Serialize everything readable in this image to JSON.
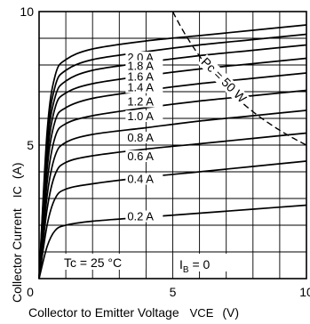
{
  "chart_data": {
    "type": "line",
    "title": "",
    "xlabel": "Collector to Emitter Voltage VCE (V)",
    "xlabel_main": "Collector to Emitter Voltage",
    "xlabel_symbol": "VCE",
    "xlabel_unit": "(V)",
    "ylabel": "Collector Current IC (A)",
    "ylabel_main": "Collector Current",
    "ylabel_symbol": "IC",
    "ylabel_unit": "(A)",
    "xlim": [
      0,
      10
    ],
    "ylim": [
      0,
      10
    ],
    "x_ticks": [
      0,
      5,
      10
    ],
    "y_ticks": [
      5,
      10
    ],
    "grid": true,
    "annotations": {
      "temperature": "Tc = 25 °C",
      "base_current": "IB = 0",
      "power_limit": "Pc = 50 W"
    },
    "power_limit_curve": {
      "name": "Pc = 50 W",
      "style": "dashed",
      "watts": 50
    },
    "series": [
      {
        "name": "2.0 A",
        "x": [
          0,
          0.3,
          0.6,
          1,
          2,
          4,
          6,
          8,
          10
        ],
        "y": [
          0,
          5.5,
          7.6,
          8.2,
          8.6,
          8.9,
          9.1,
          9.3,
          9.5
        ]
      },
      {
        "name": "1.8 A",
        "x": [
          0,
          0.3,
          0.6,
          1,
          2,
          4,
          6,
          8,
          10
        ],
        "y": [
          0,
          5.2,
          7.2,
          7.8,
          8.2,
          8.5,
          8.75,
          8.95,
          9.15
        ]
      },
      {
        "name": "1.6 A",
        "x": [
          0,
          0.3,
          0.6,
          1,
          2,
          4,
          6,
          8,
          10
        ],
        "y": [
          0,
          4.9,
          6.8,
          7.4,
          7.8,
          8.1,
          8.35,
          8.55,
          8.75
        ]
      },
      {
        "name": "1.4 A",
        "x": [
          0,
          0.3,
          0.6,
          1,
          2,
          4,
          6,
          8,
          10
        ],
        "y": [
          0,
          4.5,
          6.4,
          6.95,
          7.3,
          7.6,
          7.85,
          8.05,
          8.25
        ]
      },
      {
        "name": "1.2 A",
        "x": [
          0,
          0.3,
          0.6,
          1,
          2,
          4,
          6,
          8,
          10
        ],
        "y": [
          0,
          4.1,
          5.9,
          6.4,
          6.75,
          7.05,
          7.3,
          7.5,
          7.7
        ]
      },
      {
        "name": "1.0 A",
        "x": [
          0,
          0.3,
          0.6,
          1,
          2,
          4,
          6,
          8,
          10
        ],
        "y": [
          0,
          3.6,
          5.3,
          5.8,
          6.1,
          6.4,
          6.65,
          6.85,
          7.05
        ]
      },
      {
        "name": "0.8 A",
        "x": [
          0,
          0.3,
          0.6,
          1,
          2,
          4,
          6,
          8,
          10
        ],
        "y": [
          0,
          3.1,
          4.6,
          5.1,
          5.4,
          5.65,
          5.9,
          6.1,
          6.3
        ]
      },
      {
        "name": "0.6 A",
        "x": [
          0,
          0.3,
          0.6,
          1,
          2,
          4,
          6,
          8,
          10
        ],
        "y": [
          0,
          2.6,
          3.9,
          4.35,
          4.6,
          4.85,
          5.05,
          5.25,
          5.45
        ]
      },
      {
        "name": "0.4 A",
        "x": [
          0,
          0.3,
          0.6,
          1,
          2,
          4,
          6,
          8,
          10
        ],
        "y": [
          0,
          2.0,
          3.0,
          3.35,
          3.55,
          3.8,
          4.0,
          4.2,
          4.4
        ]
      },
      {
        "name": "0.2 A",
        "x": [
          0,
          0.3,
          0.6,
          1,
          2,
          4,
          6,
          8,
          10
        ],
        "y": [
          0,
          1.2,
          1.8,
          2.0,
          2.15,
          2.3,
          2.45,
          2.6,
          2.75
        ]
      }
    ],
    "series_labels": [
      {
        "text": "2.0 A",
        "x": 3.3,
        "y": 8.1
      },
      {
        "text": "1.8 A",
        "x": 3.3,
        "y": 7.78
      },
      {
        "text": "1.6 A",
        "x": 3.3,
        "y": 7.38
      },
      {
        "text": "1.4 A",
        "x": 3.3,
        "y": 6.98
      },
      {
        "text": "1.2 A",
        "x": 3.3,
        "y": 6.45
      },
      {
        "text": "1.0 A",
        "x": 3.3,
        "y": 5.9
      },
      {
        "text": "0.8 A",
        "x": 3.3,
        "y": 5.1
      },
      {
        "text": "0.6 A",
        "x": 3.3,
        "y": 4.4
      },
      {
        "text": "0.4 A",
        "x": 3.3,
        "y": 3.55
      },
      {
        "text": "0.2 A",
        "x": 3.3,
        "y": 2.15
      }
    ],
    "colors": {
      "line": "#000000",
      "grid": "#000000",
      "background": "#ffffff"
    }
  }
}
